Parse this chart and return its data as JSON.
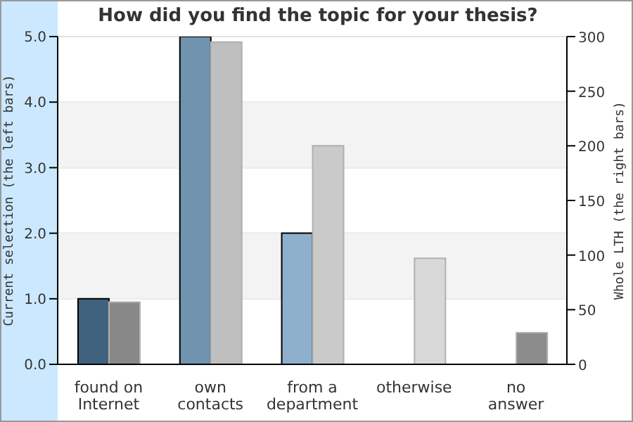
{
  "chart_data": {
    "type": "bar",
    "title": "How did you find the topic for your thesis?",
    "ylabel": "Current selection (the left bars)",
    "y2label": "Whole LTH (the right bars)",
    "categories": [
      "found on Internet",
      "own contacts",
      "from a department",
      "otherwise",
      "no answer"
    ],
    "series": [
      {
        "colors": [
          "#41627e",
          "#7093b0",
          "#8fb0cc",
          "#8fb0cc",
          "#8fb0cc"
        ],
        "values": [
          1,
          5,
          2,
          0,
          0
        ]
      },
      {
        "colors": [
          "#888888",
          "#bfbfbf",
          "#cacaca",
          "#d8d8d8",
          "#8c8c8c"
        ],
        "values": [
          57,
          295,
          200,
          97,
          29
        ],
        "axis": "y2"
      }
    ],
    "ylim": [
      0,
      5
    ],
    "yticks": [
      {
        "value": 0,
        "label": "0.0"
      },
      {
        "value": 1,
        "label": "1.0"
      },
      {
        "value": 2,
        "label": "2.0"
      },
      {
        "value": 3,
        "label": "3.0"
      },
      {
        "value": 4,
        "label": "4.0"
      },
      {
        "value": 5,
        "label": "5.0"
      }
    ],
    "y2lim": [
      0,
      300
    ],
    "y2ticks": [
      0,
      50,
      100,
      150,
      200,
      250,
      300
    ],
    "bands": [
      {
        "axis": "y",
        "from": 1,
        "to": 2,
        "color": "#f3f3f3"
      },
      {
        "axis": "y",
        "from": 3,
        "to": 4,
        "color": "#f3f3f3"
      }
    ],
    "grid": "y",
    "legend": false
  }
}
